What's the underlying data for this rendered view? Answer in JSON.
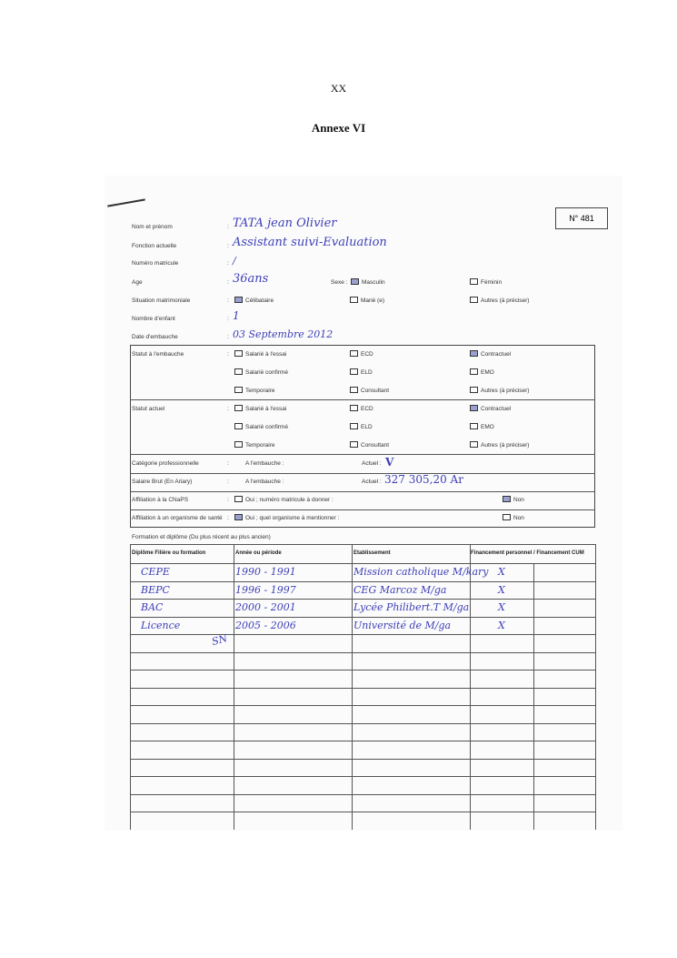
{
  "header": {
    "page_marker": "XX",
    "annex_title": "Annexe VI"
  },
  "form": {
    "number": "N° 481",
    "fields": [
      {
        "label": "Nom et prénom",
        "value": "TATA jean Olivier"
      },
      {
        "label": "Fonction actuelle",
        "value": "Assistant suivi-Evaluation"
      },
      {
        "label": "Numéro matricule",
        "value": "/"
      },
      {
        "label": "Age",
        "value": "36ans"
      },
      {
        "label": "Situation matrimoniale"
      },
      {
        "label": "Nombre d'enfant",
        "value": "1"
      },
      {
        "label": "Date d'embauche",
        "value": "03 Septembre 2012"
      }
    ],
    "sexe": {
      "label": "Sexe :",
      "options": [
        {
          "label": "Masculin",
          "checked": true
        },
        {
          "label": "Féminin",
          "checked": false
        }
      ]
    },
    "situation_options": [
      {
        "label": "Célibataire",
        "checked": true
      },
      {
        "label": "Marié (e)",
        "checked": false
      },
      {
        "label": "Autres (à préciser)",
        "checked": false
      }
    ],
    "statut_embauche": {
      "label": "Statut à l'embauche",
      "options": [
        {
          "label": "Salarié à l'essai",
          "checked": false
        },
        {
          "label": "ECD",
          "checked": false
        },
        {
          "label": "Contractuel",
          "checked": true
        },
        {
          "label": "Salarié confirmé",
          "checked": false
        },
        {
          "label": "ELD",
          "checked": false
        },
        {
          "label": "EMO",
          "checked": false
        },
        {
          "label": "Temporaire",
          "checked": false
        },
        {
          "label": "Consultant",
          "checked": false
        },
        {
          "label": "Autres (à préciser)",
          "checked": false
        }
      ]
    },
    "statut_actuel": {
      "label": "Statut actuel",
      "options": [
        {
          "label": "Salarié à l'essai",
          "checked": false
        },
        {
          "label": "ECD",
          "checked": false
        },
        {
          "label": "Contractuel",
          "checked": true
        },
        {
          "label": "Salarié confirmé",
          "checked": false
        },
        {
          "label": "ELD",
          "checked": false
        },
        {
          "label": "EMO",
          "checked": false
        },
        {
          "label": "Temporaire",
          "checked": false
        },
        {
          "label": "Consultant",
          "checked": false
        },
        {
          "label": "Autres (à préciser)",
          "checked": false
        }
      ]
    },
    "categorie": {
      "label": "Catégorie professionnelle",
      "embauche_label": "A l'embauche :",
      "actuel_label": "Actuel :",
      "actuel_value": "V"
    },
    "salaire": {
      "label": "Salaire Brut (En Ariary)",
      "embauche_label": "A l'embauche :",
      "actuel_label": "Actuel :",
      "actuel_value": "327 305,20 Ar"
    },
    "cnaps": {
      "label": "Affiliation à la CNaPS",
      "oui": "Oui ; numéro matricule à donner   :",
      "oui_checked": false,
      "non": "Non",
      "non_checked": true
    },
    "sante": {
      "label": "Affiliation à un organisme de santé",
      "oui": "Oui ; quel organisme à mentionner :",
      "oui_checked": true,
      "non": "Non",
      "non_checked": false
    }
  },
  "formation": {
    "caption": "Formation et diplôme (Du plus récent au plus ancien)",
    "columns": [
      "Diplôme Filière ou formation",
      "Année ou période",
      "Etablissement",
      "Financement personnel / Financement CUM"
    ],
    "rows": [
      {
        "diplome": "CEPE",
        "periode": "1990 - 1991",
        "etablissement": "Mission catholique M/kary",
        "financement_personnel": "X"
      },
      {
        "diplome": "BEPC",
        "periode": "1996 - 1997",
        "etablissement": "CEG Marcoz M/ga",
        "financement_personnel": "X"
      },
      {
        "diplome": "BAC",
        "periode": "2000 - 2001",
        "etablissement": "Lycée Philibert.T M/ga",
        "financement_personnel": "X"
      },
      {
        "diplome": "Licence",
        "periode": "2005 - 2006",
        "etablissement": "Université de M/ga",
        "financement_personnel": "X"
      }
    ],
    "initials": "SN"
  }
}
